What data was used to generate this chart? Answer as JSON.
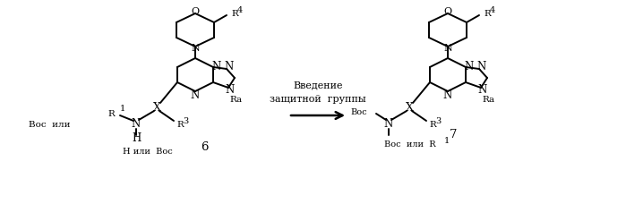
{
  "bg": "#ffffff",
  "lc": "#000000",
  "fs": 8.5,
  "fs_s": 7.5,
  "fs_t": 6.0,
  "lw": 1.4,
  "intro_line1": "Введение",
  "intro_line2": "защитной  группы",
  "boc_ili": "Вос  или",
  "h_ili_boc": "Н или  Вос",
  "boc_ili_r1": "Вос  или  R"
}
